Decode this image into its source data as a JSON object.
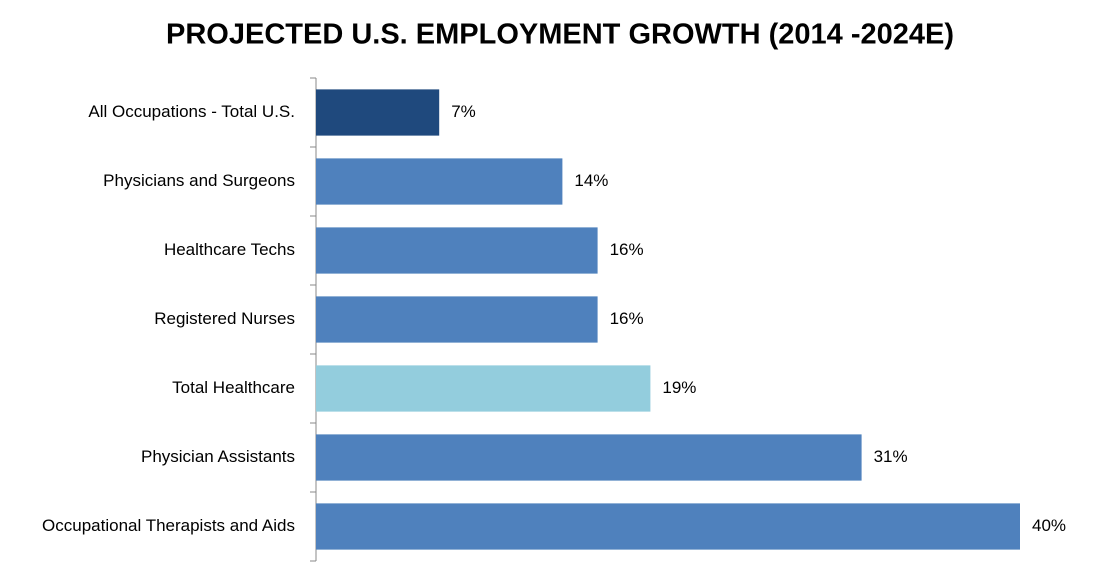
{
  "chart_data": {
    "type": "bar",
    "orientation": "horizontal",
    "title": "PROJECTED U.S. EMPLOYMENT GROWTH (2014 -2024E)",
    "categories": [
      "All Occupations - Total U.S.",
      "Physicians and Surgeons",
      "Healthcare Techs",
      "Registered Nurses",
      "Total Healthcare",
      "Physician Assistants",
      "Occupational Therapists and Aids"
    ],
    "values": [
      7,
      14,
      16,
      16,
      19,
      31,
      40
    ],
    "value_labels": [
      "7%",
      "14%",
      "16%",
      "16%",
      "19%",
      "31%",
      "40%"
    ],
    "colors": [
      "#1f497d",
      "#4f81bd",
      "#4f81bd",
      "#4f81bd",
      "#93cddd",
      "#4f81bd",
      "#4f81bd"
    ]
  }
}
